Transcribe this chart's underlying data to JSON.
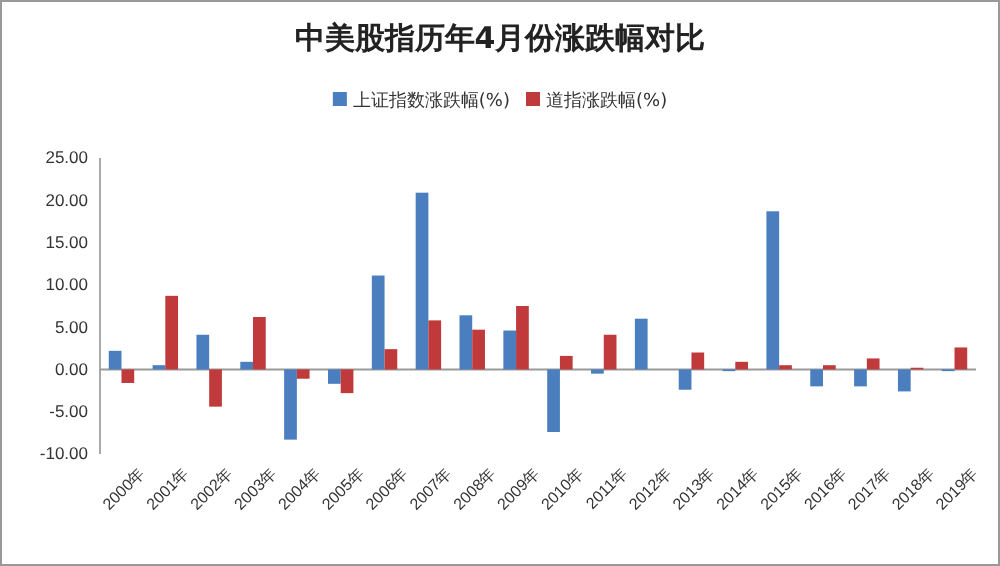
{
  "chart_data": {
    "type": "bar",
    "title": "中美股指历年4月份涨跌幅对比",
    "categories": [
      "2000年",
      "2001年",
      "2002年",
      "2003年",
      "2004年",
      "2005年",
      "2006年",
      "2007年",
      "2008年",
      "2009年",
      "2010年",
      "2011年",
      "2012年",
      "2013年",
      "2014年",
      "2015年",
      "2016年",
      "2017年",
      "2018年",
      "2019年"
    ],
    "series": [
      {
        "name": "上证指数涨跌幅(%)",
        "color": "#4a7ebf",
        "values": [
          2.2,
          0.5,
          4.1,
          0.9,
          -8.3,
          -1.7,
          11.1,
          20.9,
          6.4,
          4.6,
          -7.4,
          -0.5,
          6.0,
          -2.4,
          -0.2,
          18.7,
          -2.0,
          -2.0,
          -2.6,
          -0.2
        ]
      },
      {
        "name": "道指涨跌幅(%)",
        "color": "#c0393b",
        "values": [
          -1.6,
          8.7,
          -4.4,
          6.2,
          -1.1,
          -2.8,
          2.4,
          5.8,
          4.7,
          7.5,
          1.6,
          4.1,
          0,
          2.0,
          0.9,
          0.5,
          0.5,
          1.3,
          0.2,
          2.6
        ]
      }
    ],
    "ylim": [
      -10,
      25
    ],
    "yticks": [
      {
        "value": -10,
        "label": "-10.00"
      },
      {
        "value": -5,
        "label": "-5.00"
      },
      {
        "value": 0,
        "label": "0.00"
      },
      {
        "value": 5,
        "label": "5.00"
      },
      {
        "value": 10,
        "label": "10.00"
      },
      {
        "value": 15,
        "label": "15.00"
      },
      {
        "value": 20,
        "label": "20.00"
      },
      {
        "value": 25,
        "label": "25.00"
      }
    ],
    "legend": "top"
  }
}
